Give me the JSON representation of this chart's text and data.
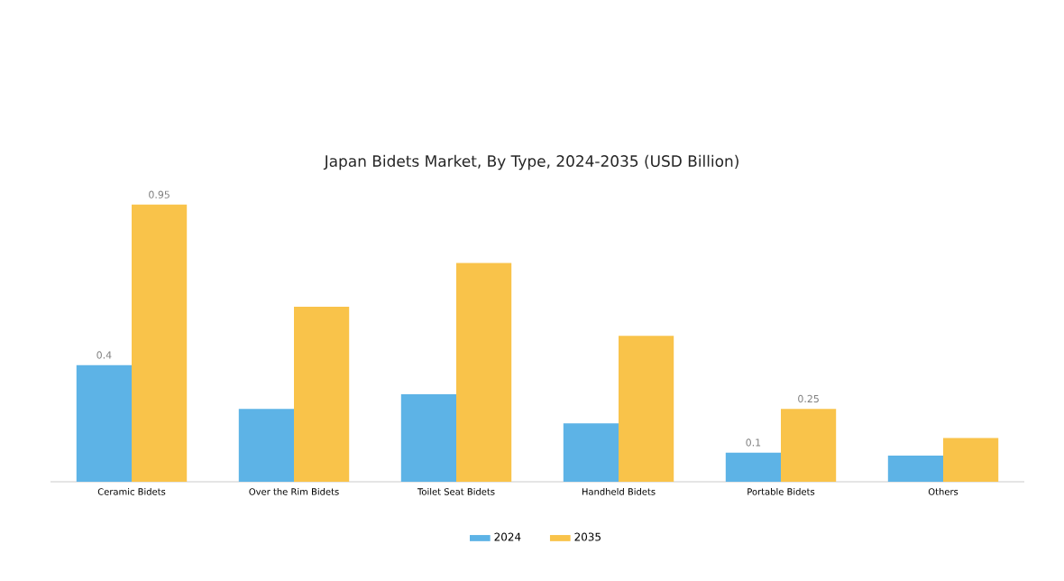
{
  "chart_data": {
    "type": "bar",
    "title": "Japan Bidets Market, By Type, 2024-2035 (USD Billion)",
    "categories": [
      "Ceramic Bidets",
      "Over the Rim Bidets",
      "Toilet Seat Bidets",
      "Handheld Bidets",
      "Portable Bidets",
      "Others"
    ],
    "series": [
      {
        "name": "2024",
        "color": "#5db3e6",
        "values": [
          0.4,
          0.25,
          0.3,
          0.2,
          0.1,
          0.09
        ],
        "value_labels": [
          "0.4",
          null,
          null,
          null,
          "0.1",
          null
        ]
      },
      {
        "name": "2035",
        "color": "#f9c34a",
        "values": [
          0.95,
          0.6,
          0.75,
          0.5,
          0.25,
          0.15
        ],
        "value_labels": [
          "0.95",
          null,
          null,
          null,
          "0.25",
          null
        ]
      }
    ],
    "legend": "bottom"
  }
}
